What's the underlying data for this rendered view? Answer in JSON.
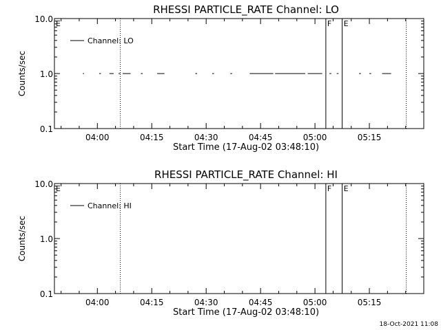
{
  "footer_timestamp": "18-Oct-2021 11:08",
  "chart_data": [
    {
      "type": "line",
      "title": "RHESSI PARTICLE_RATE Channel: LO",
      "xlabel": "Start Time (17-Aug-02 03:48:10)",
      "ylabel": "Counts/sec",
      "y_scale": "log",
      "ylim": [
        0.1,
        10.0
      ],
      "y_ticks": [
        {
          "value": 0.1,
          "label": "0.1"
        },
        {
          "value": 1.0,
          "label": "1.0"
        },
        {
          "value": 10.0,
          "label": "10.0"
        }
      ],
      "xlim": [
        "03:48:10",
        "05:30:00"
      ],
      "x_ticks": [
        {
          "value": "04:00",
          "label": "04:00"
        },
        {
          "value": "04:15",
          "label": "04:15"
        },
        {
          "value": "04:30",
          "label": "04:30"
        },
        {
          "value": "04:45",
          "label": "04:45"
        },
        {
          "value": "05:00",
          "label": "05:00"
        },
        {
          "value": "05:15",
          "label": "05:15"
        }
      ],
      "legend": {
        "placement": "top-left",
        "entries": [
          "Channel: LO"
        ]
      },
      "series": [
        {
          "name": "Channel: LO",
          "segments": [
            {
              "start": "03:56:00",
              "end": "03:56:20",
              "value": 1.0
            },
            {
              "start": "04:00:30",
              "end": "04:01:00",
              "value": 1.0
            },
            {
              "start": "04:03:20",
              "end": "04:04:30",
              "value": 1.0
            },
            {
              "start": "04:05:50",
              "end": "04:06:20",
              "value": 1.0
            },
            {
              "start": "04:07:00",
              "end": "04:09:10",
              "value": 1.0
            },
            {
              "start": "04:12:00",
              "end": "04:12:30",
              "value": 1.0
            },
            {
              "start": "04:16:30",
              "end": "04:18:30",
              "value": 1.0
            },
            {
              "start": "04:27:00",
              "end": "04:27:30",
              "value": 1.0
            },
            {
              "start": "04:31:40",
              "end": "04:32:10",
              "value": 1.0
            },
            {
              "start": "04:36:40",
              "end": "04:37:10",
              "value": 1.0
            },
            {
              "start": "04:42:00",
              "end": "04:48:30",
              "value": 1.0
            },
            {
              "start": "04:49:00",
              "end": "04:57:20",
              "value": 1.0
            },
            {
              "start": "04:58:00",
              "end": "05:02:00",
              "value": 1.0
            },
            {
              "start": "05:04:00",
              "end": "05:04:30",
              "value": 1.0
            },
            {
              "start": "05:06:00",
              "end": "05:06:30",
              "value": 1.0
            },
            {
              "start": "05:12:10",
              "end": "05:12:40",
              "value": 1.0
            },
            {
              "start": "05:15:00",
              "end": "05:15:30",
              "value": 1.0
            },
            {
              "start": "05:18:30",
              "end": "05:21:00",
              "value": 1.0
            }
          ]
        }
      ],
      "markers": [
        {
          "time": "03:48:10",
          "label": "E",
          "style": "dotted"
        },
        {
          "time": "04:06:20",
          "label": "",
          "style": "dotted"
        },
        {
          "time": "05:03:00",
          "label": "F",
          "style": "solid"
        },
        {
          "time": "05:07:30",
          "label": "E",
          "style": "solid"
        },
        {
          "time": "05:25:10",
          "label": "",
          "style": "dotted"
        }
      ]
    },
    {
      "type": "line",
      "title": "RHESSI PARTICLE_RATE Channel: HI",
      "xlabel": "Start Time (17-Aug-02 03:48:10)",
      "ylabel": "Counts/sec",
      "y_scale": "log",
      "ylim": [
        0.1,
        10.0
      ],
      "y_ticks": [
        {
          "value": 0.1,
          "label": "0.1"
        },
        {
          "value": 1.0,
          "label": "1.0"
        },
        {
          "value": 10.0,
          "label": "10.0"
        }
      ],
      "xlim": [
        "03:48:10",
        "05:30:00"
      ],
      "x_ticks": [
        {
          "value": "04:00",
          "label": "04:00"
        },
        {
          "value": "04:15",
          "label": "04:15"
        },
        {
          "value": "04:30",
          "label": "04:30"
        },
        {
          "value": "04:45",
          "label": "04:45"
        },
        {
          "value": "05:00",
          "label": "05:00"
        },
        {
          "value": "05:15",
          "label": "05:15"
        }
      ],
      "legend": {
        "placement": "top-left",
        "entries": [
          "Channel: HI"
        ]
      },
      "series": [
        {
          "name": "Channel: HI",
          "segments": []
        }
      ],
      "markers": [
        {
          "time": "03:48:10",
          "label": "E",
          "style": "dotted"
        },
        {
          "time": "04:06:20",
          "label": "",
          "style": "dotted"
        },
        {
          "time": "05:03:00",
          "label": "F",
          "style": "solid"
        },
        {
          "time": "05:07:30",
          "label": "E",
          "style": "solid"
        },
        {
          "time": "05:25:10",
          "label": "",
          "style": "dotted"
        }
      ]
    }
  ]
}
